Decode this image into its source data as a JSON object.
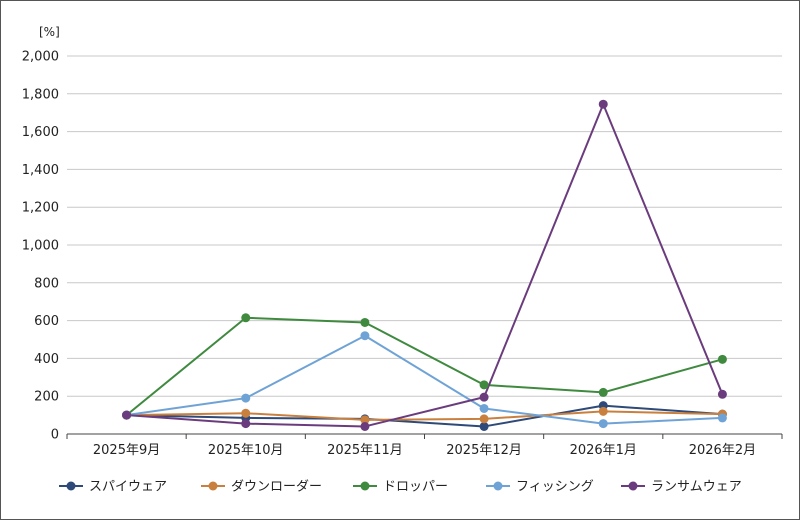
{
  "chart_data": {
    "type": "line",
    "y_unit": "[%]",
    "categories": [
      "2025年9月",
      "2025年10月",
      "2025年11月",
      "2025年12月",
      "2026年1月",
      "2026年2月"
    ],
    "y_ticks": [
      "0",
      "200",
      "400",
      "600",
      "800",
      "1,000",
      "1,200",
      "1,400",
      "1,600",
      "1,800",
      "2,000"
    ],
    "ylim": [
      0,
      2000
    ],
    "grid": true,
    "legend_position": "bottom",
    "series": [
      {
        "name": "スパイウェア",
        "color": "#2e4a78",
        "values": [
          100,
          85,
          80,
          40,
          150,
          105
        ]
      },
      {
        "name": "ダウンローダー",
        "color": "#c9803e",
        "values": [
          100,
          110,
          75,
          80,
          120,
          105
        ]
      },
      {
        "name": "ドロッパー",
        "color": "#3f8a3f",
        "values": [
          100,
          615,
          590,
          260,
          220,
          395
        ]
      },
      {
        "name": "フィッシング",
        "color": "#6fa3d6",
        "values": [
          100,
          190,
          520,
          135,
          55,
          85
        ]
      },
      {
        "name": "ランサムウェア",
        "color": "#6b3c7d",
        "values": [
          100,
          55,
          40,
          195,
          1745,
          210
        ]
      }
    ]
  }
}
